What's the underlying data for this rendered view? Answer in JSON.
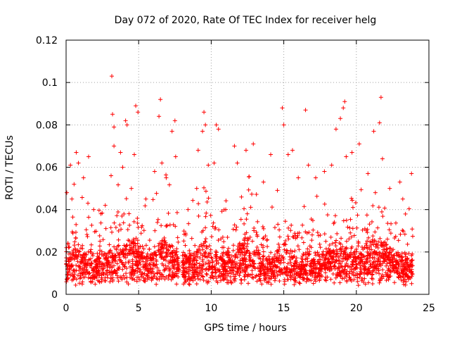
{
  "chart_data": {
    "type": "scatter",
    "title": "Day 072 of 2020, Rate Of TEC Index for receiver helg",
    "xlabel": "GPS time / hours",
    "ylabel": "ROTI / TECUs",
    "xlim": [
      0,
      25
    ],
    "ylim": [
      0,
      0.12
    ],
    "xticks": [
      0,
      5,
      10,
      15,
      20,
      25
    ],
    "xtick_labels": [
      "0",
      "5",
      "10",
      "15",
      "20",
      "25"
    ],
    "yticks": [
      0,
      0.02,
      0.04,
      0.06,
      0.08,
      0.1,
      0.12
    ],
    "ytick_labels": [
      "0",
      "0.02",
      "0.04",
      "0.06",
      "0.08",
      "0.1",
      "0.12"
    ],
    "grid": true,
    "marker": "+",
    "color": "#ff0000",
    "data_extent_hours": [
      0,
      23.9
    ],
    "data_gap_hours": [
      7.8,
      8.0
    ],
    "series": [
      {
        "name": "ROTI",
        "points": [
          [
            0.05,
            0.048
          ],
          [
            0.3,
            0.061
          ],
          [
            0.4,
            0.045
          ],
          [
            0.55,
            0.052
          ],
          [
            0.7,
            0.067
          ],
          [
            0.85,
            0.062
          ],
          [
            1.2,
            0.055
          ],
          [
            1.55,
            0.065
          ],
          [
            1.9,
            0.04
          ],
          [
            2.4,
            0.038
          ],
          [
            2.7,
            0.042
          ],
          [
            3.1,
            0.056
          ],
          [
            3.15,
            0.103
          ],
          [
            3.2,
            0.085
          ],
          [
            3.3,
            0.079
          ],
          [
            3.3,
            0.07
          ],
          [
            3.75,
            0.067
          ],
          [
            3.9,
            0.06
          ],
          [
            4.1,
            0.082
          ],
          [
            4.2,
            0.08
          ],
          [
            4.5,
            0.05
          ],
          [
            4.7,
            0.066
          ],
          [
            4.8,
            0.089
          ],
          [
            4.95,
            0.086
          ],
          [
            5.5,
            0.045
          ],
          [
            6.1,
            0.058
          ],
          [
            6.4,
            0.084
          ],
          [
            6.5,
            0.092
          ],
          [
            6.6,
            0.062
          ],
          [
            6.9,
            0.055
          ],
          [
            7.3,
            0.077
          ],
          [
            7.5,
            0.082
          ],
          [
            7.55,
            0.065
          ],
          [
            8.4,
            0.04
          ],
          [
            9.0,
            0.05
          ],
          [
            9.1,
            0.068
          ],
          [
            9.4,
            0.077
          ],
          [
            9.5,
            0.086
          ],
          [
            9.6,
            0.08
          ],
          [
            9.8,
            0.061
          ],
          [
            10.2,
            0.062
          ],
          [
            10.35,
            0.08
          ],
          [
            10.5,
            0.078
          ],
          [
            11.0,
            0.04
          ],
          [
            11.6,
            0.07
          ],
          [
            11.8,
            0.062
          ],
          [
            12.4,
            0.068
          ],
          [
            12.9,
            0.071
          ],
          [
            13.6,
            0.053
          ],
          [
            14.1,
            0.066
          ],
          [
            14.9,
            0.088
          ],
          [
            15.0,
            0.08
          ],
          [
            15.3,
            0.066
          ],
          [
            15.6,
            0.068
          ],
          [
            16.0,
            0.055
          ],
          [
            16.5,
            0.087
          ],
          [
            16.7,
            0.061
          ],
          [
            17.2,
            0.055
          ],
          [
            17.8,
            0.058
          ],
          [
            18.3,
            0.061
          ],
          [
            18.6,
            0.078
          ],
          [
            18.9,
            0.083
          ],
          [
            19.1,
            0.088
          ],
          [
            19.2,
            0.091
          ],
          [
            19.3,
            0.065
          ],
          [
            19.7,
            0.067
          ],
          [
            20.2,
            0.071
          ],
          [
            20.8,
            0.057
          ],
          [
            21.2,
            0.077
          ],
          [
            21.6,
            0.081
          ],
          [
            21.7,
            0.093
          ],
          [
            21.8,
            0.064
          ],
          [
            22.3,
            0.05
          ],
          [
            23.0,
            0.053
          ],
          [
            23.2,
            0.045
          ],
          [
            23.8,
            0.057
          ]
        ]
      }
    ]
  }
}
